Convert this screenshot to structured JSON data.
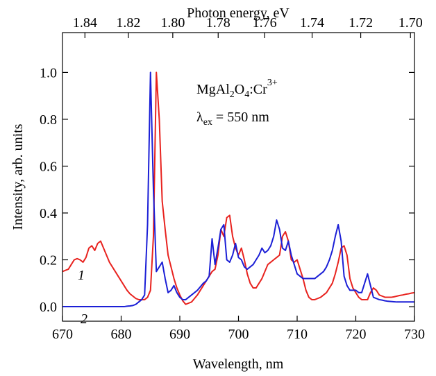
{
  "chart_data": {
    "type": "line",
    "xlabel": "Wavelength, nm",
    "ylabel": "Intensity, arb. units",
    "x2label": "Photon energy, eV",
    "xlim": [
      670,
      730
    ],
    "xticks": [
      670,
      680,
      690,
      700,
      710,
      720,
      730
    ],
    "ylim": [
      -0.062,
      1.17
    ],
    "yticks": [
      {
        "value": 0,
        "label": "0.0"
      },
      0.2,
      0.4,
      0.6,
      0.8,
      {
        "value": 1,
        "label": "1.0"
      }
    ],
    "x2ticks": [
      1.84,
      1.82,
      {
        "value": 1.8,
        "label": "1.80"
      },
      1.78,
      1.76,
      1.74,
      1.72,
      {
        "value": 1.7,
        "label": "1.70"
      }
    ],
    "annotations": [
      [
        "MgAl",
        "2",
        "O",
        "4",
        ":Cr",
        "3+"
      ],
      [
        "λ",
        "ex",
        " = 550 nm"
      ]
    ],
    "x": [
      670,
      670.5,
      671,
      671.5,
      672,
      672.5,
      673,
      673.5,
      674,
      674.5,
      675,
      675.5,
      676,
      676.5,
      677,
      677.5,
      678,
      678.5,
      679,
      679.5,
      680,
      680.5,
      681,
      681.5,
      682,
      682.5,
      683,
      683.5,
      684,
      684.5,
      685,
      685.5,
      686,
      686.5,
      687,
      687.5,
      688,
      688.5,
      689,
      689.5,
      690,
      690.5,
      691,
      691.5,
      692,
      692.5,
      693,
      693.5,
      694,
      694.5,
      695,
      695.5,
      696,
      696.5,
      697,
      697.5,
      698,
      698.5,
      699,
      699.5,
      700,
      700.5,
      701,
      701.5,
      702,
      702.5,
      703,
      703.5,
      704,
      704.5,
      705,
      705.5,
      706,
      706.5,
      707,
      707.5,
      708,
      708.5,
      709,
      709.5,
      710,
      710.5,
      711,
      711.5,
      712,
      712.5,
      713,
      713.5,
      714,
      714.5,
      715,
      715.5,
      716,
      716.5,
      717,
      717.5,
      718,
      718.5,
      719,
      719.5,
      720,
      720.5,
      721,
      721.5,
      722,
      722.5,
      723,
      723.5,
      724,
      724.5,
      725,
      725.5,
      726,
      726.5,
      727,
      727.5,
      728,
      728.5,
      729,
      729.5,
      730
    ],
    "series": [
      {
        "name": "1",
        "color": "#e8231f",
        "values": [
          0.15,
          0.155,
          0.16,
          0.18,
          0.2,
          0.205,
          0.2,
          0.19,
          0.21,
          0.25,
          0.26,
          0.24,
          0.27,
          0.28,
          0.25,
          0.22,
          0.19,
          0.17,
          0.15,
          0.13,
          0.11,
          0.09,
          0.07,
          0.055,
          0.045,
          0.035,
          0.03,
          0.03,
          0.03,
          0.04,
          0.07,
          0.3,
          1.0,
          0.8,
          0.45,
          0.33,
          0.22,
          0.17,
          0.12,
          0.08,
          0.05,
          0.025,
          0.01,
          0.015,
          0.02,
          0.035,
          0.05,
          0.07,
          0.09,
          0.11,
          0.13,
          0.15,
          0.16,
          0.22,
          0.33,
          0.3,
          0.38,
          0.39,
          0.3,
          0.25,
          0.22,
          0.25,
          0.2,
          0.14,
          0.1,
          0.08,
          0.08,
          0.1,
          0.12,
          0.15,
          0.18,
          0.19,
          0.2,
          0.21,
          0.22,
          0.3,
          0.32,
          0.28,
          0.2,
          0.19,
          0.2,
          0.16,
          0.12,
          0.07,
          0.04,
          0.03,
          0.03,
          0.035,
          0.04,
          0.05,
          0.06,
          0.08,
          0.1,
          0.14,
          0.19,
          0.25,
          0.26,
          0.22,
          0.12,
          0.08,
          0.06,
          0.04,
          0.03,
          0.03,
          0.03,
          0.06,
          0.08,
          0.07,
          0.05,
          0.045,
          0.04,
          0.04,
          0.04,
          0.042,
          0.045,
          0.048,
          0.05,
          0.053,
          0.055,
          0.058,
          0.06
        ]
      },
      {
        "name": "2",
        "color": "#1b1fd6",
        "values": [
          0,
          0,
          0,
          0,
          0,
          0,
          0,
          0,
          0,
          0,
          0,
          0,
          0,
          0,
          0,
          0,
          0,
          0,
          0,
          0,
          0,
          0,
          0.002,
          0.003,
          0.005,
          0.01,
          0.02,
          0.03,
          0.05,
          0.35,
          1.0,
          0.5,
          0.15,
          0.17,
          0.19,
          0.12,
          0.06,
          0.07,
          0.09,
          0.06,
          0.04,
          0.03,
          0.03,
          0.04,
          0.05,
          0.06,
          0.07,
          0.085,
          0.1,
          0.11,
          0.13,
          0.29,
          0.18,
          0.25,
          0.33,
          0.35,
          0.2,
          0.19,
          0.22,
          0.27,
          0.21,
          0.2,
          0.17,
          0.16,
          0.17,
          0.18,
          0.2,
          0.22,
          0.25,
          0.23,
          0.24,
          0.26,
          0.3,
          0.37,
          0.33,
          0.25,
          0.24,
          0.28,
          0.22,
          0.18,
          0.14,
          0.13,
          0.12,
          0.12,
          0.12,
          0.12,
          0.12,
          0.13,
          0.14,
          0.15,
          0.17,
          0.2,
          0.24,
          0.3,
          0.35,
          0.28,
          0.13,
          0.09,
          0.07,
          0.07,
          0.07,
          0.06,
          0.06,
          0.1,
          0.14,
          0.09,
          0.04,
          0.035,
          0.03,
          0.028,
          0.025,
          0.023,
          0.022,
          0.021,
          0.02,
          0.02,
          0.02,
          0.02,
          0.02,
          0.02,
          0.02
        ]
      }
    ]
  }
}
